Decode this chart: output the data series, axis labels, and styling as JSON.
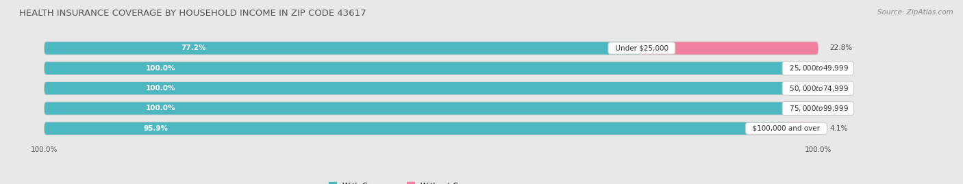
{
  "title": "HEALTH INSURANCE COVERAGE BY HOUSEHOLD INCOME IN ZIP CODE 43617",
  "source": "Source: ZipAtlas.com",
  "categories": [
    "Under $25,000",
    "$25,000 to $49,999",
    "$50,000 to $74,999",
    "$75,000 to $99,999",
    "$100,000 and over"
  ],
  "with_coverage": [
    77.2,
    100.0,
    100.0,
    100.0,
    95.9
  ],
  "without_coverage": [
    22.8,
    0.0,
    0.0,
    0.0,
    4.1
  ],
  "color_with": "#4DB8C0",
  "color_without": "#F080A0",
  "bar_height": 0.62,
  "background_color": "#e8e8e8",
  "bar_bg_color": "#f5f5f5",
  "title_fontsize": 9.5,
  "label_fontsize": 7.5,
  "tick_fontsize": 7.5,
  "legend_fontsize": 8,
  "x_left_label": "100.0%",
  "x_right_label": "100.0%",
  "xlim_left": -2,
  "xlim_right": 115
}
